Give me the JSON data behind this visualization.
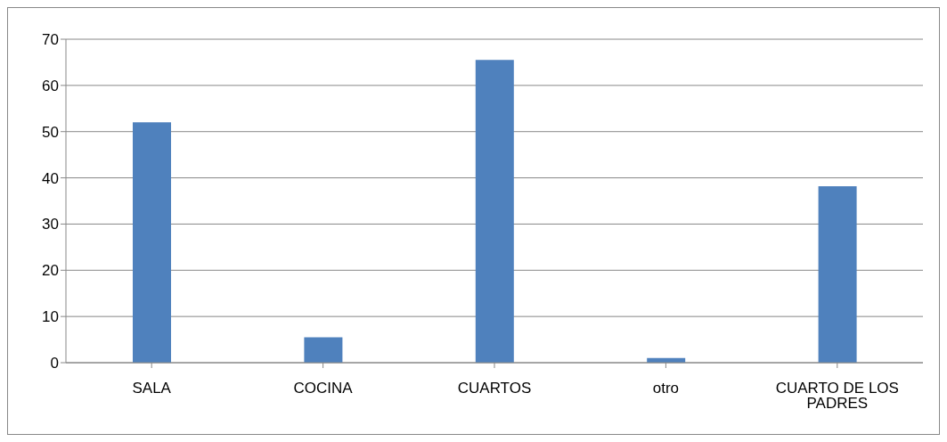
{
  "chart_data": {
    "type": "bar",
    "categories": [
      "SALA",
      "COCINA",
      "CUARTOS",
      "otro",
      "CUARTO DE LOS PADRES"
    ],
    "values": [
      52,
      5.5,
      65.5,
      1,
      38.2
    ],
    "color": "#4f81bd",
    "ylim": [
      0,
      70
    ],
    "yticks": [
      0,
      10,
      20,
      30,
      40,
      50,
      60,
      70
    ],
    "grid": "y",
    "legend": false
  }
}
